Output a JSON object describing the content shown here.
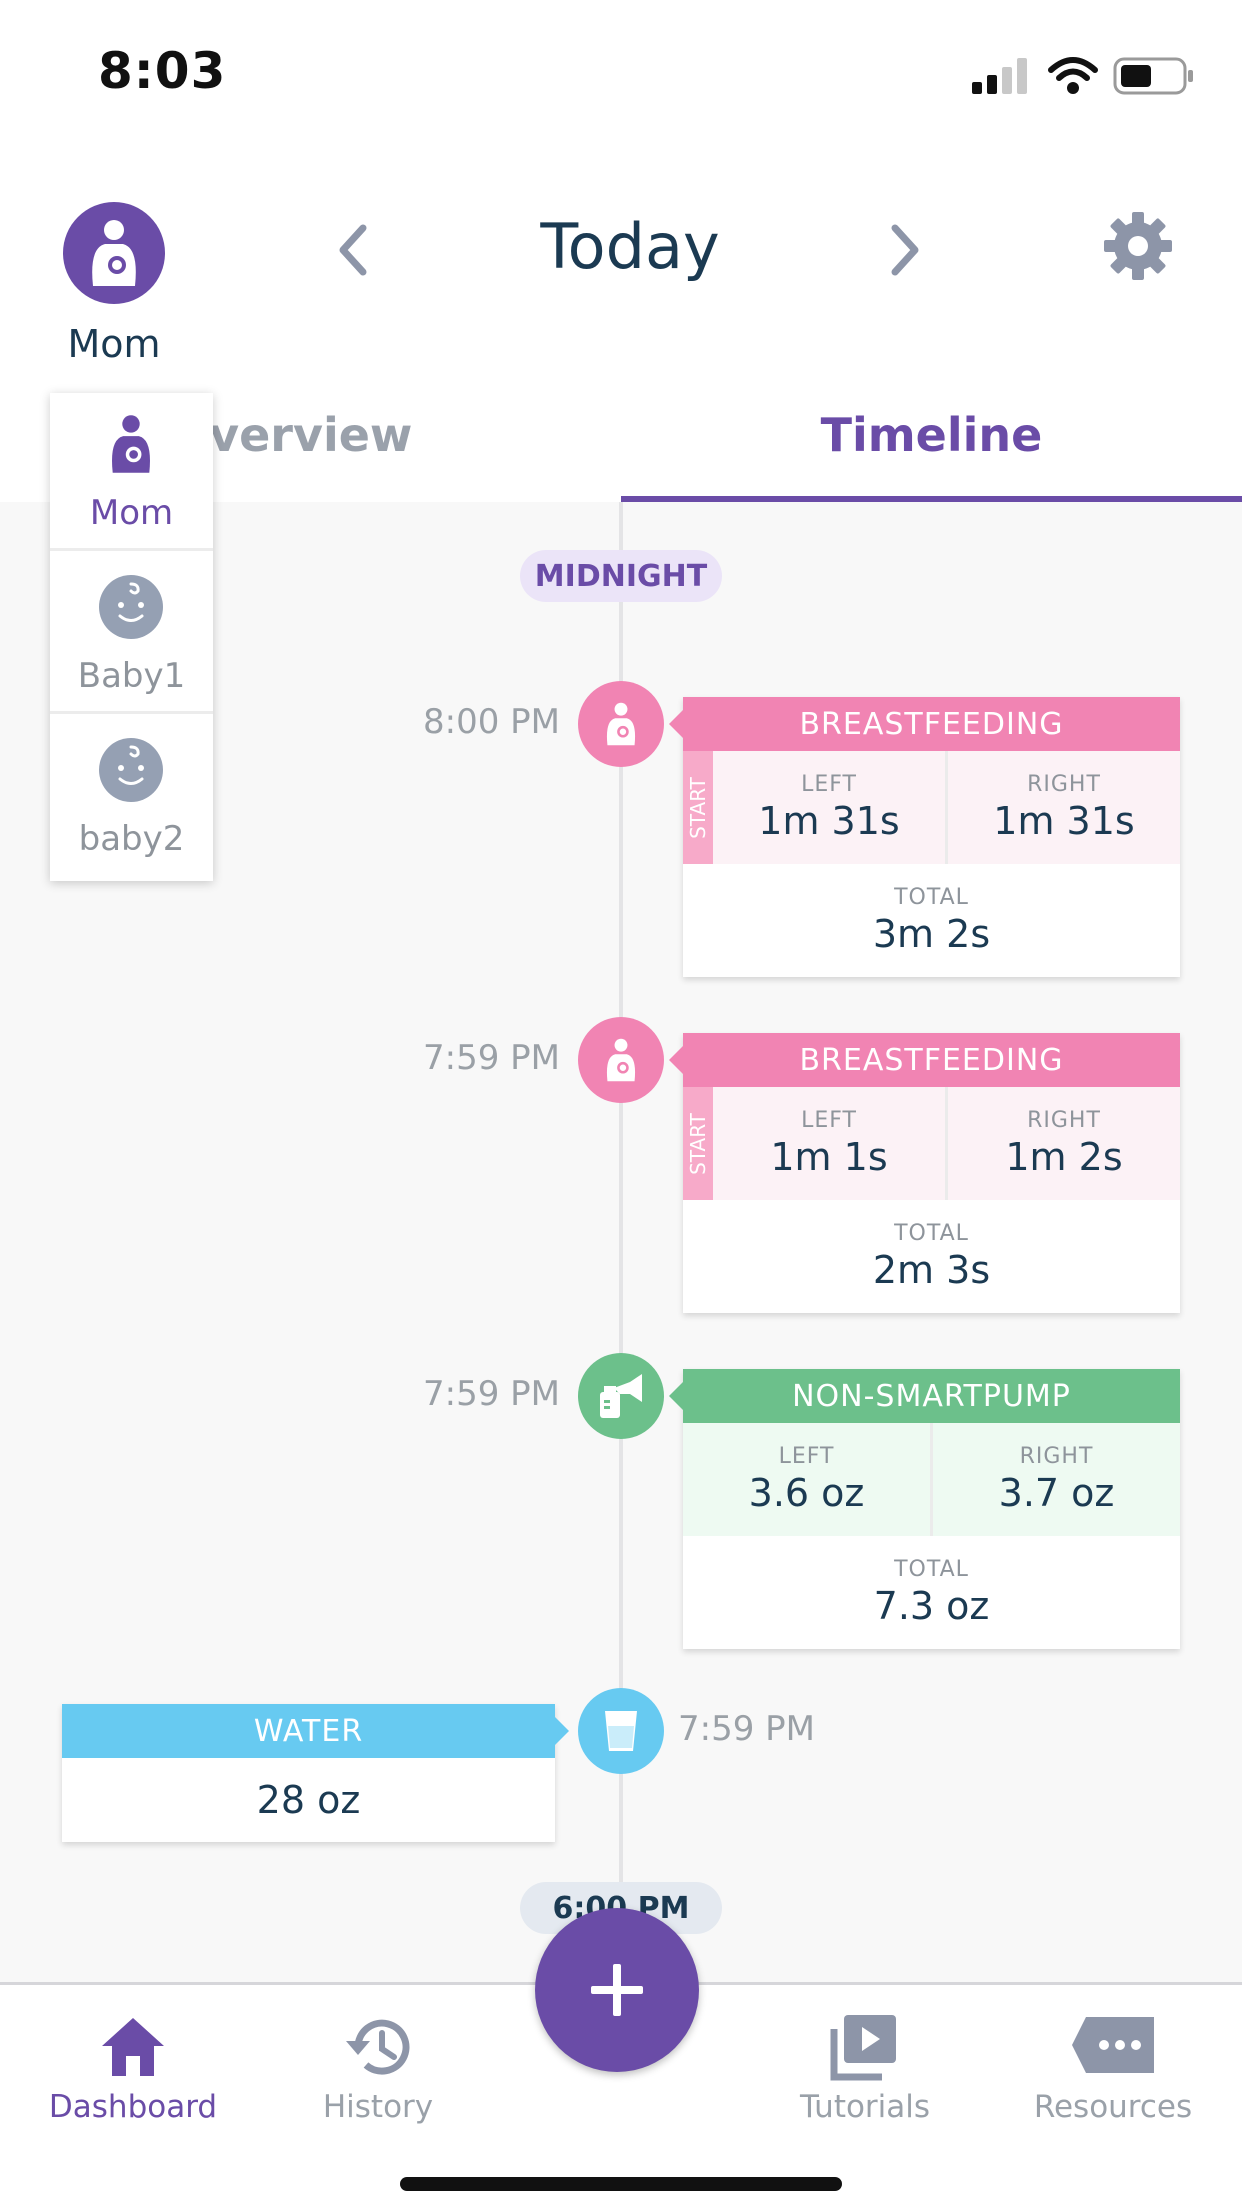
{
  "status_bar": {
    "time": "8:03"
  },
  "header": {
    "profile_name": "Mom",
    "title": "Today",
    "prev_label": "‹",
    "next_label": "›"
  },
  "tabs": [
    {
      "label": "Overview",
      "active": false
    },
    {
      "label": "Timeline",
      "active": true
    }
  ],
  "profile_dropdown": [
    {
      "name": "Mom",
      "type": "mom",
      "selected": true
    },
    {
      "name": "Baby1",
      "type": "baby",
      "selected": false
    },
    {
      "name": "baby2",
      "type": "baby",
      "selected": false
    }
  ],
  "timeline": {
    "top_marker": "MIDNIGHT",
    "bottom_marker": "6:00 PM",
    "entries": [
      {
        "time": "8:00 PM",
        "type": "BREASTFEEDING",
        "icon": "breastfeeding-icon",
        "start_label": "START",
        "left_label": "LEFT",
        "left_value": "1m 31s",
        "right_label": "RIGHT",
        "right_value": "1m 31s",
        "total_label": "TOTAL",
        "total_value": "3m 2s"
      },
      {
        "time": "7:59 PM",
        "type": "BREASTFEEDING",
        "icon": "breastfeeding-icon",
        "start_label": "START",
        "left_label": "LEFT",
        "left_value": "1m 1s",
        "right_label": "RIGHT",
        "right_value": "1m 2s",
        "total_label": "TOTAL",
        "total_value": "2m 3s"
      },
      {
        "time": "7:59 PM",
        "type": "NON-SMARTPUMP",
        "icon": "pump-icon",
        "left_label": "LEFT",
        "left_value": "3.6 oz",
        "right_label": "RIGHT",
        "right_value": "3.7 oz",
        "total_label": "TOTAL",
        "total_value": "7.3 oz"
      },
      {
        "time": "7:59 PM",
        "type": "WATER",
        "icon": "water-glass-icon",
        "value": "28 oz"
      }
    ]
  },
  "bottom_nav": [
    {
      "label": "Dashboard",
      "icon": "home-icon",
      "active": true
    },
    {
      "label": "History",
      "icon": "history-icon",
      "active": false
    },
    {
      "label": "+",
      "icon": "add-icon"
    },
    {
      "label": "Tutorials",
      "icon": "video-icon",
      "active": false
    },
    {
      "label": "Resources",
      "icon": "chat-bubble-icon",
      "active": false
    }
  ],
  "colors": {
    "brand_purple": "#6a4ca7",
    "breastfeeding_pink": "#f184b3",
    "pump_green": "#6cc08b",
    "water_blue": "#67caf1",
    "text_dark": "#1b3a52"
  }
}
